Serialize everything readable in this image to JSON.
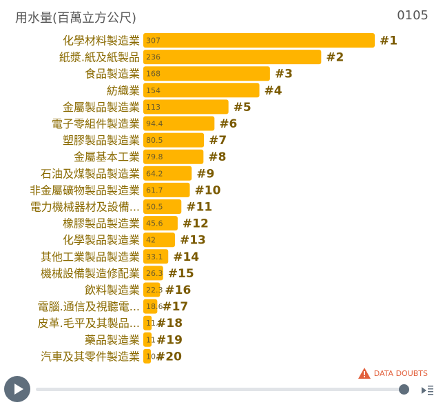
{
  "header": {
    "title": "用水量(百萬立方公尺)",
    "date": "0105"
  },
  "footer": {
    "data_doubts": "DATA DOUBTS"
  },
  "colors": {
    "bar": "#FFB400",
    "accent": "#E2603C",
    "control": "#5F6E7C"
  },
  "chart_data": {
    "type": "bar",
    "orientation": "horizontal",
    "title": "用水量(百萬立方公尺)",
    "categories": [
      "化學材料製造業",
      "紙漿.紙及紙製品",
      "食品製造業",
      "紡織業",
      "金屬製品製造業",
      "電子零組件製造業",
      "塑膠製品製造業",
      "金屬基本工業",
      "石油及煤製品製造業",
      "非金屬礦物製品製造業",
      "電力機械器材及設備...",
      "橡膠製品製造業",
      "化學製品製造業",
      "其他工業製品製造業",
      "機械設備製造修配業",
      "飲料製造業",
      "電腦.通信及視聽電...",
      "皮革.毛平及其製品...",
      "藥品製造業",
      "汽車及其零件製造業"
    ],
    "values": [
      307,
      236,
      168,
      154,
      113,
      94.4,
      80.5,
      79.8,
      64.2,
      61.7,
      50.5,
      45.6,
      42,
      33.1,
      26.3,
      22.3,
      18.6,
      11.1,
      11,
      10.1
    ],
    "ranks": [
      "#1",
      "#2",
      "#3",
      "#4",
      "#5",
      "#6",
      "#7",
      "#8",
      "#9",
      "#10",
      "#11",
      "#12",
      "#13",
      "#14",
      "#15",
      "#16",
      "#17",
      "#18",
      "#19",
      "#20"
    ],
    "xlim": [
      0,
      307
    ],
    "grid": false,
    "legend": "none"
  }
}
